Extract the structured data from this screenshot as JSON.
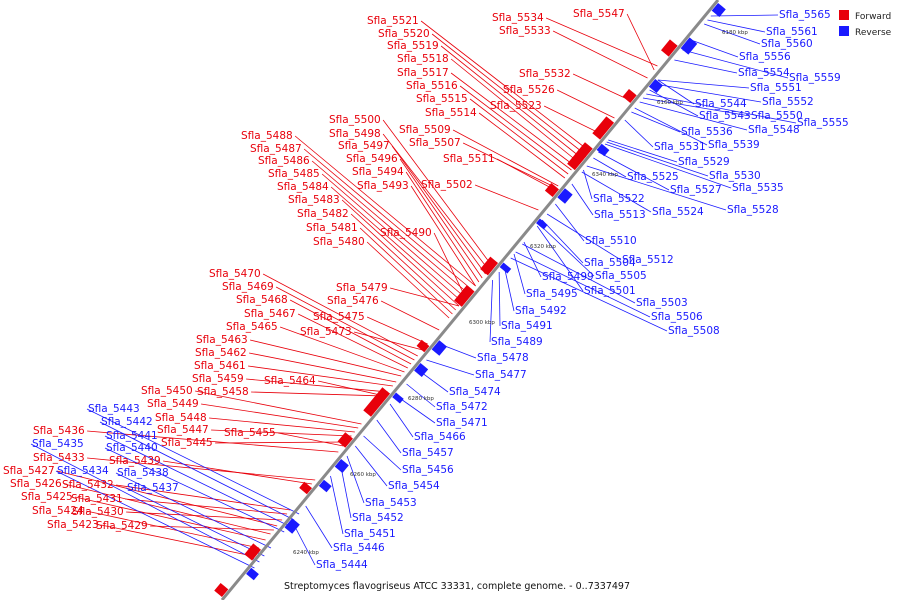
{
  "legend": [
    {
      "label": "Forward",
      "color": "#e8000b"
    },
    {
      "label": "Reverse",
      "color": "#1a1aff"
    }
  ],
  "caption": "Streptomyces flavogriseus ATCC 33331, complete genome. - 0..7337497",
  "scale_ticks": [
    "6180 kbp",
    "6160 kbp",
    "6340 kbp",
    "6320 kbp",
    "6300 kbp",
    "6280 kbp",
    "6260 kbp",
    "6240 kbp"
  ],
  "genes_forward": [
    "Sfla_5547",
    "Sfla_5534",
    "Sfla_5533",
    "Sfla_5532",
    "Sfla_5526",
    "Sfla_5523",
    "Sfla_5521",
    "Sfla_5520",
    "Sfla_5519",
    "Sfla_5518",
    "Sfla_5517",
    "Sfla_5516",
    "Sfla_5515",
    "Sfla_5514",
    "Sfla_5511",
    "Sfla_5509",
    "Sfla_5507",
    "Sfla_5502",
    "Sfla_5500",
    "Sfla_5498",
    "Sfla_5497",
    "Sfla_5496",
    "Sfla_5494",
    "Sfla_5493",
    "Sfla_5490",
    "Sfla_5488",
    "Sfla_5487",
    "Sfla_5486",
    "Sfla_5485",
    "Sfla_5484",
    "Sfla_5483",
    "Sfla_5482",
    "Sfla_5481",
    "Sfla_5480",
    "Sfla_5479",
    "Sfla_5476",
    "Sfla_5475",
    "Sfla_5473",
    "Sfla_5470",
    "Sfla_5469",
    "Sfla_5468",
    "Sfla_5467",
    "Sfla_5465",
    "Sfla_5464",
    "Sfla_5463",
    "Sfla_5462",
    "Sfla_5461",
    "Sfla_5459",
    "Sfla_5458",
    "Sfla_5455",
    "Sfla_5450",
    "Sfla_5449",
    "Sfla_5448",
    "Sfla_5447",
    "Sfla_5445",
    "Sfla_5439",
    "Sfla_5436",
    "Sfla_5433",
    "Sfla_5432",
    "Sfla_5431",
    "Sfla_5430",
    "Sfla_5429",
    "Sfla_5427",
    "Sfla_5426",
    "Sfla_5425",
    "Sfla_5424",
    "Sfla_5423"
  ],
  "genes_reverse": [
    "Sfla_5565",
    "Sfla_5561",
    "Sfla_5560",
    "Sfla_5559",
    "Sfla_5556",
    "Sfla_5555",
    "Sfla_5554",
    "Sfla_5552",
    "Sfla_5551",
    "Sfla_5550",
    "Sfla_5548",
    "Sfla_5544",
    "Sfla_5543",
    "Sfla_5539",
    "Sfla_5536",
    "Sfla_5535",
    "Sfla_5531",
    "Sfla_5530",
    "Sfla_5529",
    "Sfla_5528",
    "Sfla_5527",
    "Sfla_5525",
    "Sfla_5524",
    "Sfla_5522",
    "Sfla_5513",
    "Sfla_5512",
    "Sfla_5510",
    "Sfla_5508",
    "Sfla_5506",
    "Sfla_5505",
    "Sfla_5504",
    "Sfla_5503",
    "Sfla_5501",
    "Sfla_5499",
    "Sfla_5495",
    "Sfla_5492",
    "Sfla_5491",
    "Sfla_5489",
    "Sfla_5478",
    "Sfla_5477",
    "Sfla_5474",
    "Sfla_5472",
    "Sfla_5471",
    "Sfla_5466",
    "Sfla_5457",
    "Sfla_5456",
    "Sfla_5454",
    "Sfla_5453",
    "Sfla_5452",
    "Sfla_5451",
    "Sfla_5446",
    "Sfla_5444",
    "Sfla_5443",
    "Sfla_5442",
    "Sfla_5441",
    "Sfla_5440",
    "Sfla_5438",
    "Sfla_5437",
    "Sfla_5435",
    "Sfla_5434"
  ]
}
